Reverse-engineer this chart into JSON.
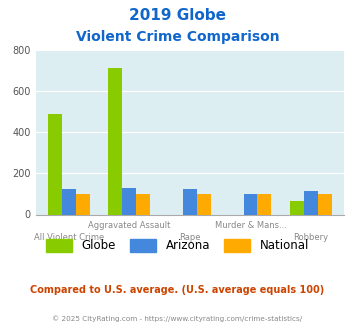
{
  "title_line1": "2019 Globe",
  "title_line2": "Violent Crime Comparison",
  "categories": [
    "All Violent Crime",
    "Aggravated Assault",
    "Rape",
    "Murder & Mans...",
    "Robbery"
  ],
  "top_labels": [
    "",
    "Aggravated Assault",
    "",
    "Murder & Mans...",
    ""
  ],
  "bot_labels": [
    "All Violent Crime",
    "",
    "Rape",
    "",
    "Robbery"
  ],
  "globe_values": [
    485,
    710,
    0,
    0,
    65
  ],
  "arizona_values": [
    125,
    130,
    125,
    100,
    115
  ],
  "national_values": [
    100,
    100,
    100,
    100,
    100
  ],
  "globe_color": "#88cc00",
  "arizona_color": "#4488dd",
  "national_color": "#ffaa00",
  "ylim": [
    0,
    800
  ],
  "yticks": [
    0,
    200,
    400,
    600,
    800
  ],
  "bg_color": "#ddeef2",
  "title_color": "#1166cc",
  "footer_text": "Compared to U.S. average. (U.S. average equals 100)",
  "footer_color": "#cc4400",
  "copyright_text": "© 2025 CityRating.com - https://www.cityrating.com/crime-statistics/",
  "copyright_color": "#888888",
  "legend_labels": [
    "Globe",
    "Arizona",
    "National"
  ]
}
